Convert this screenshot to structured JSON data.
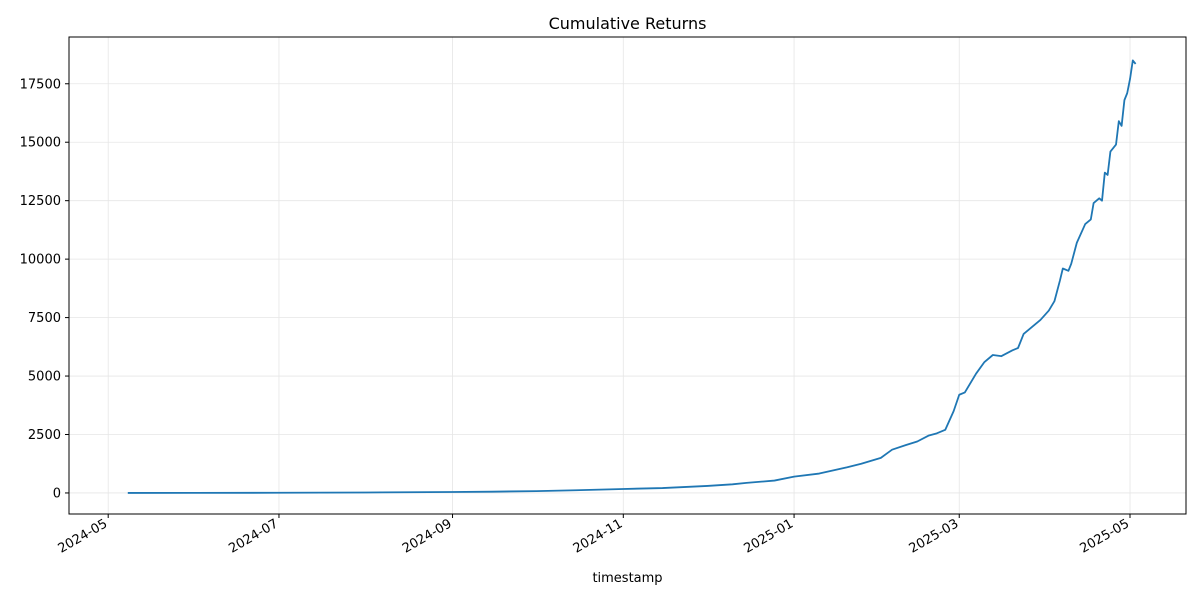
{
  "chart_data": {
    "type": "line",
    "title": "Cumulative Returns",
    "xlabel": "timestamp",
    "ylabel": "",
    "x_axis_type": "date",
    "xlim": [
      "2024-04-17",
      "2025-05-21"
    ],
    "ylim": [
      -900,
      19500
    ],
    "x_ticks": [
      "2024-05",
      "2024-07",
      "2024-09",
      "2024-11",
      "2025-01",
      "2025-03",
      "2025-05"
    ],
    "y_ticks": [
      0,
      2500,
      5000,
      7500,
      10000,
      12500,
      15000,
      17500
    ],
    "grid": true,
    "legend": "none",
    "colors": {
      "line": "#1f77b4",
      "grid": "#e6e6e6",
      "axis": "#000000"
    },
    "series": [
      {
        "points": [
          [
            "2024-05-08",
            0
          ],
          [
            "2024-06-01",
            2
          ],
          [
            "2024-07-01",
            8
          ],
          [
            "2024-08-01",
            20
          ],
          [
            "2024-09-01",
            40
          ],
          [
            "2024-09-15",
            55
          ],
          [
            "2024-10-01",
            80
          ],
          [
            "2024-10-15",
            115
          ],
          [
            "2024-11-01",
            170
          ],
          [
            "2024-11-15",
            210
          ],
          [
            "2024-12-01",
            300
          ],
          [
            "2024-12-10",
            370
          ],
          [
            "2024-12-15",
            430
          ],
          [
            "2024-12-25",
            530
          ],
          [
            "2025-01-01",
            700
          ],
          [
            "2025-01-10",
            830
          ],
          [
            "2025-01-20",
            1100
          ],
          [
            "2025-01-25",
            1250
          ],
          [
            "2025-02-01",
            1500
          ],
          [
            "2025-02-05",
            1850
          ],
          [
            "2025-02-10",
            2050
          ],
          [
            "2025-02-14",
            2200
          ],
          [
            "2025-02-18",
            2450
          ],
          [
            "2025-02-21",
            2550
          ],
          [
            "2025-02-24",
            2700
          ],
          [
            "2025-02-27",
            3500
          ],
          [
            "2025-03-01",
            4200
          ],
          [
            "2025-03-03",
            4300
          ],
          [
            "2025-03-07",
            5100
          ],
          [
            "2025-03-10",
            5600
          ],
          [
            "2025-03-13",
            5900
          ],
          [
            "2025-03-16",
            5850
          ],
          [
            "2025-03-20",
            6100
          ],
          [
            "2025-03-22",
            6200
          ],
          [
            "2025-03-24",
            6800
          ],
          [
            "2025-03-27",
            7100
          ],
          [
            "2025-03-30",
            7400
          ],
          [
            "2025-04-02",
            7800
          ],
          [
            "2025-04-04",
            8200
          ],
          [
            "2025-04-06",
            9100
          ],
          [
            "2025-04-07",
            9600
          ],
          [
            "2025-04-09",
            9500
          ],
          [
            "2025-04-10",
            9800
          ],
          [
            "2025-04-12",
            10700
          ],
          [
            "2025-04-15",
            11500
          ],
          [
            "2025-04-17",
            11700
          ],
          [
            "2025-04-18",
            12400
          ],
          [
            "2025-04-20",
            12600
          ],
          [
            "2025-04-21",
            12500
          ],
          [
            "2025-04-22",
            13700
          ],
          [
            "2025-04-23",
            13600
          ],
          [
            "2025-04-24",
            14600
          ],
          [
            "2025-04-26",
            14900
          ],
          [
            "2025-04-27",
            15900
          ],
          [
            "2025-04-28",
            15700
          ],
          [
            "2025-04-29",
            16800
          ],
          [
            "2025-04-30",
            17100
          ],
          [
            "2025-05-01",
            17700
          ],
          [
            "2025-05-02",
            18500
          ],
          [
            "2025-05-03",
            18350
          ]
        ]
      }
    ]
  }
}
